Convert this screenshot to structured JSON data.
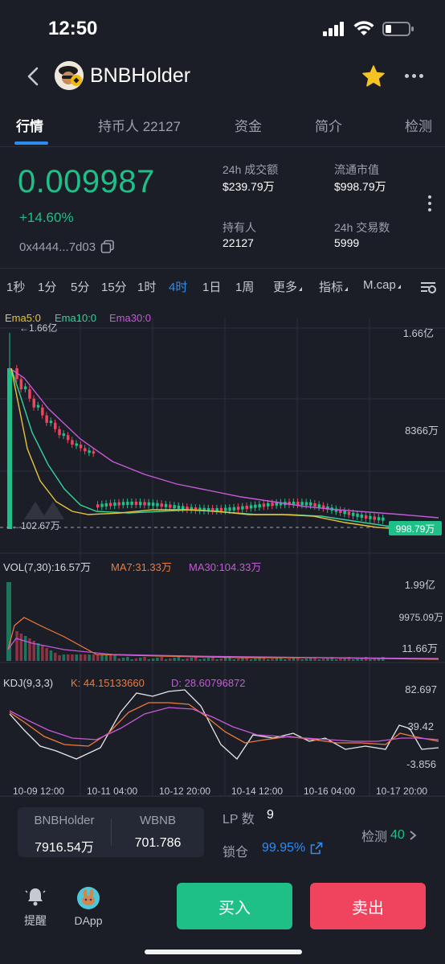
{
  "status": {
    "time": "12:50"
  },
  "header": {
    "title": "BNBHolder"
  },
  "tabs": [
    {
      "label": "行情"
    },
    {
      "label": "持币人 22127"
    },
    {
      "label": "资金"
    },
    {
      "label": "简介"
    },
    {
      "label": "检测"
    }
  ],
  "price": {
    "value": "0.009987",
    "change": "+14.60%",
    "address": "0x4444...7d03"
  },
  "stats": {
    "volume_label": "24h 成交额",
    "volume_value": "$239.79万",
    "mcap_label": "流通市值",
    "mcap_value": "$998.79万",
    "holders_label": "持有人",
    "holders_value": "22127",
    "trades_label": "24h 交易数",
    "trades_value": "5999"
  },
  "timeframes": [
    "1秒",
    "1分",
    "5分",
    "15分",
    "1时",
    "4时",
    "1日",
    "1周",
    "更多",
    "指标",
    "M.cap"
  ],
  "active_timeframe": "4时",
  "colors": {
    "up": "#1fbf88",
    "down": "#f0435d",
    "accent": "#2e8cf0",
    "ema5": "#e8c33a",
    "ema10": "#35d39a",
    "ema30": "#c65ad8"
  },
  "main_chart": {
    "ema5_label": "Ema5:0",
    "ema10_label": "Ema10:0",
    "ema30_label": "Ema30:0",
    "high_marker": "←1.66亿",
    "low_marker": "←102.67万",
    "y_ticks": [
      "1.66亿",
      "8366万"
    ],
    "current_tag": "998.79万"
  },
  "vol_chart": {
    "label": "VOL(7,30):16.57万",
    "ma7_label": "MA7:31.33万",
    "ma30_label": "MA30:104.33万",
    "y_ticks": [
      "1.99亿",
      "9975.09万",
      "11.66万"
    ]
  },
  "kdj_chart": {
    "label": "KDJ(9,3,3)",
    "k_label": "K: 44.15133660",
    "d_label": "D: 28.60796872",
    "y_ticks": [
      "82.697",
      "39.42",
      "-3.856"
    ]
  },
  "x_axis": [
    "10-09 12:00",
    "10-11 04:00",
    "10-12 20:00",
    "10-14 12:00",
    "10-16 04:00",
    "10-17 20:00"
  ],
  "liquidity": {
    "token_a": "BNBHolder",
    "token_a_amount": "7916.54万",
    "token_b": "WBNB",
    "token_b_amount": "701.786",
    "lp_label": "LP 数",
    "lp_value": "9",
    "lock_label": "锁仓",
    "lock_value": "99.95%",
    "detect_label": "检测",
    "detect_value": "40"
  },
  "bottom": {
    "alert_label": "提醒",
    "dapp_label": "DApp",
    "buy_label": "买入",
    "sell_label": "卖出"
  }
}
